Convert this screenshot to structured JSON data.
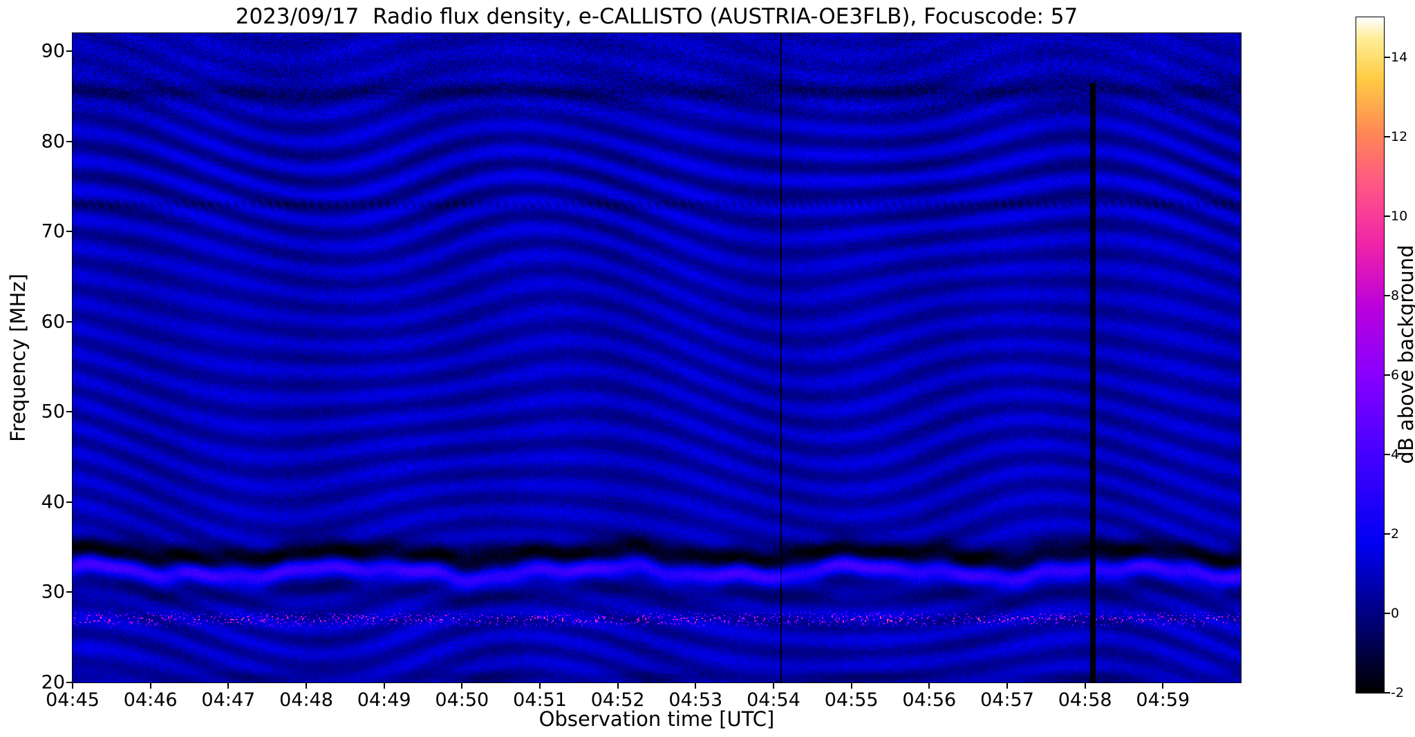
{
  "chart_data": {
    "type": "heatmap",
    "title": "2023/09/17  Radio flux density, e-CALLISTO (AUSTRIA-OE3FLB), Focuscode: 57",
    "xlabel": "Observation time [UTC]",
    "ylabel": "Frequency [MHz]",
    "x_ticks": [
      "04:45",
      "04:46",
      "04:47",
      "04:48",
      "04:49",
      "04:50",
      "04:51",
      "04:52",
      "04:53",
      "04:54",
      "04:55",
      "04:56",
      "04:57",
      "04:58",
      "04:59"
    ],
    "x_range_minutes": [
      0,
      15
    ],
    "y_ticks": [
      20,
      30,
      40,
      50,
      60,
      70,
      80,
      90
    ],
    "y_range_mhz": [
      20,
      92
    ],
    "grid": false,
    "legend": "none",
    "colorbar": {
      "label": "dB above background",
      "ticks": [
        -2,
        0,
        2,
        4,
        6,
        8,
        10,
        12,
        14
      ],
      "range": [
        -2,
        15
      ]
    },
    "colormap": {
      "name": "gnuplot2-like",
      "stops": [
        [
          0.0,
          "#000000"
        ],
        [
          0.09,
          "#000066"
        ],
        [
          0.22,
          "#0000f2"
        ],
        [
          0.35,
          "#4400ff"
        ],
        [
          0.47,
          "#8800ff"
        ],
        [
          0.57,
          "#bb00dd"
        ],
        [
          0.66,
          "#ee22aa"
        ],
        [
          0.75,
          "#ff5588"
        ],
        [
          0.83,
          "#ff8855"
        ],
        [
          0.91,
          "#ffcc44"
        ],
        [
          0.97,
          "#ffee99"
        ],
        [
          1.0,
          "#ffffff"
        ]
      ]
    },
    "features": {
      "background_db": 0.7,
      "noise_db": 0.5,
      "ripple_bands": "wavy blue interference ripples strongest near 75 MHz, 58 MHz and 24 MHz",
      "dashed_dark_line_mhz": 73,
      "bright_band": {
        "center_mhz": 32.3,
        "peak_db": 3.0,
        "dark_notch_above_mhz": 1.9,
        "wobble_mhz": 0.8
      },
      "speckle_row": {
        "center_mhz": 27.0,
        "max_db": 10
      },
      "dark_row_mhz": 85.5,
      "top_mottle_above_mhz": 83,
      "bottom_dark_blob_mhz": 20.6,
      "vertical_black_line": {
        "time": "04:58:06",
        "t_min": 13.1,
        "width_min": 0.07,
        "below_mhz": 86.5
      },
      "vertical_thin_line": {
        "time": "04:54:05",
        "t_min": 9.09,
        "width_min": 0.02
      }
    },
    "description": "e-CALLISTO solar radio spectrogram: quiet dark-blue background (~0-1 dB) with undulating ionospheric/interference ripples, a bright blue band wobbling around 31-33 MHz with a dark notch above it, pink/magenta RFI speckles near 27 MHz, a dark row near 85.5 MHz, and a black data-dropout column just after 04:58."
  }
}
